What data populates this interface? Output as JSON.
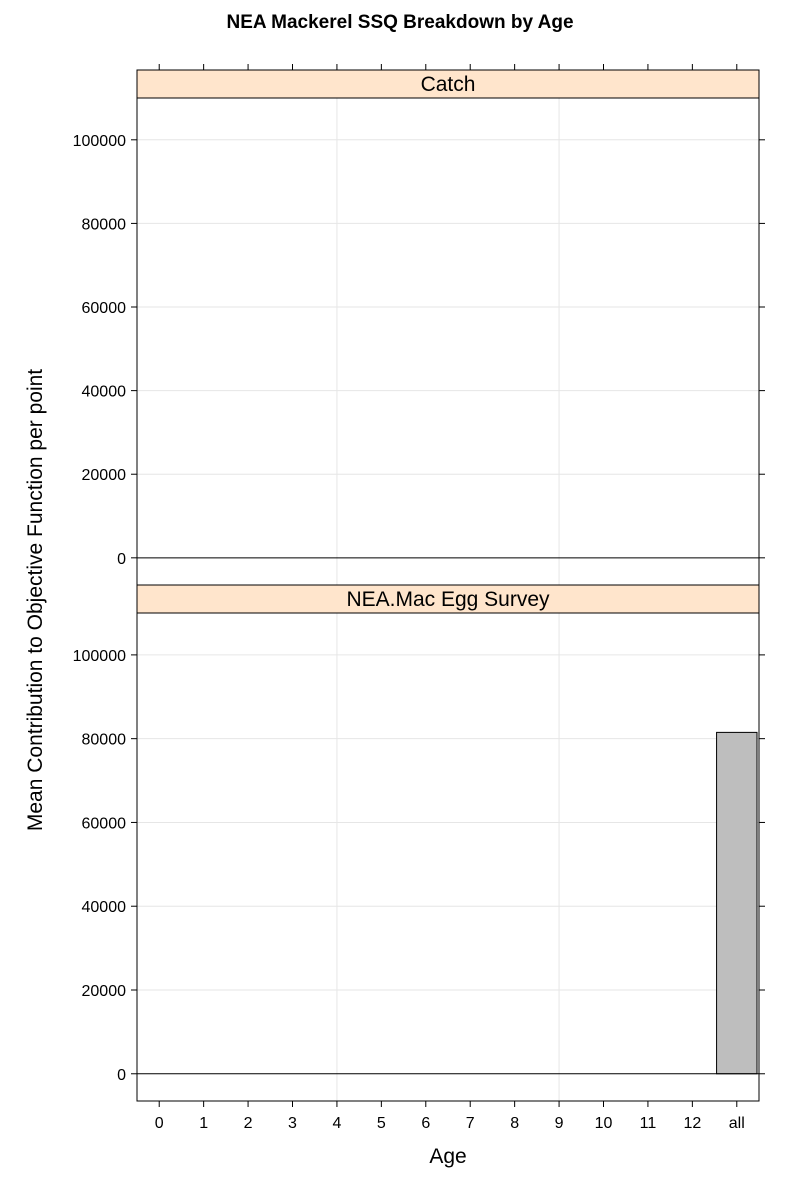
{
  "chart_data": {
    "type": "bar",
    "title": "NEA Mackerel SSQ Breakdown by Age",
    "xlabel": "Age",
    "ylabel": "Mean Contribution to Objective Function per point",
    "categories": [
      "0",
      "1",
      "2",
      "3",
      "4",
      "5",
      "6",
      "7",
      "8",
      "9",
      "10",
      "11",
      "12",
      "all"
    ],
    "ylim": [
      -6500,
      110000
    ],
    "yticks": [
      0,
      20000,
      40000,
      60000,
      80000,
      100000
    ],
    "grid": true,
    "panels": [
      {
        "name": "Catch",
        "values": [
          null,
          null,
          null,
          null,
          null,
          null,
          null,
          null,
          null,
          null,
          null,
          null,
          null,
          null
        ]
      },
      {
        "name": "NEA.Mac Egg Survey",
        "values": [
          null,
          null,
          null,
          null,
          null,
          null,
          null,
          null,
          null,
          null,
          null,
          null,
          null,
          81500
        ]
      }
    ],
    "colors": {
      "strip": "#ffe5cc",
      "bar": "#bebebe",
      "grid": "#e6e6e6"
    }
  }
}
